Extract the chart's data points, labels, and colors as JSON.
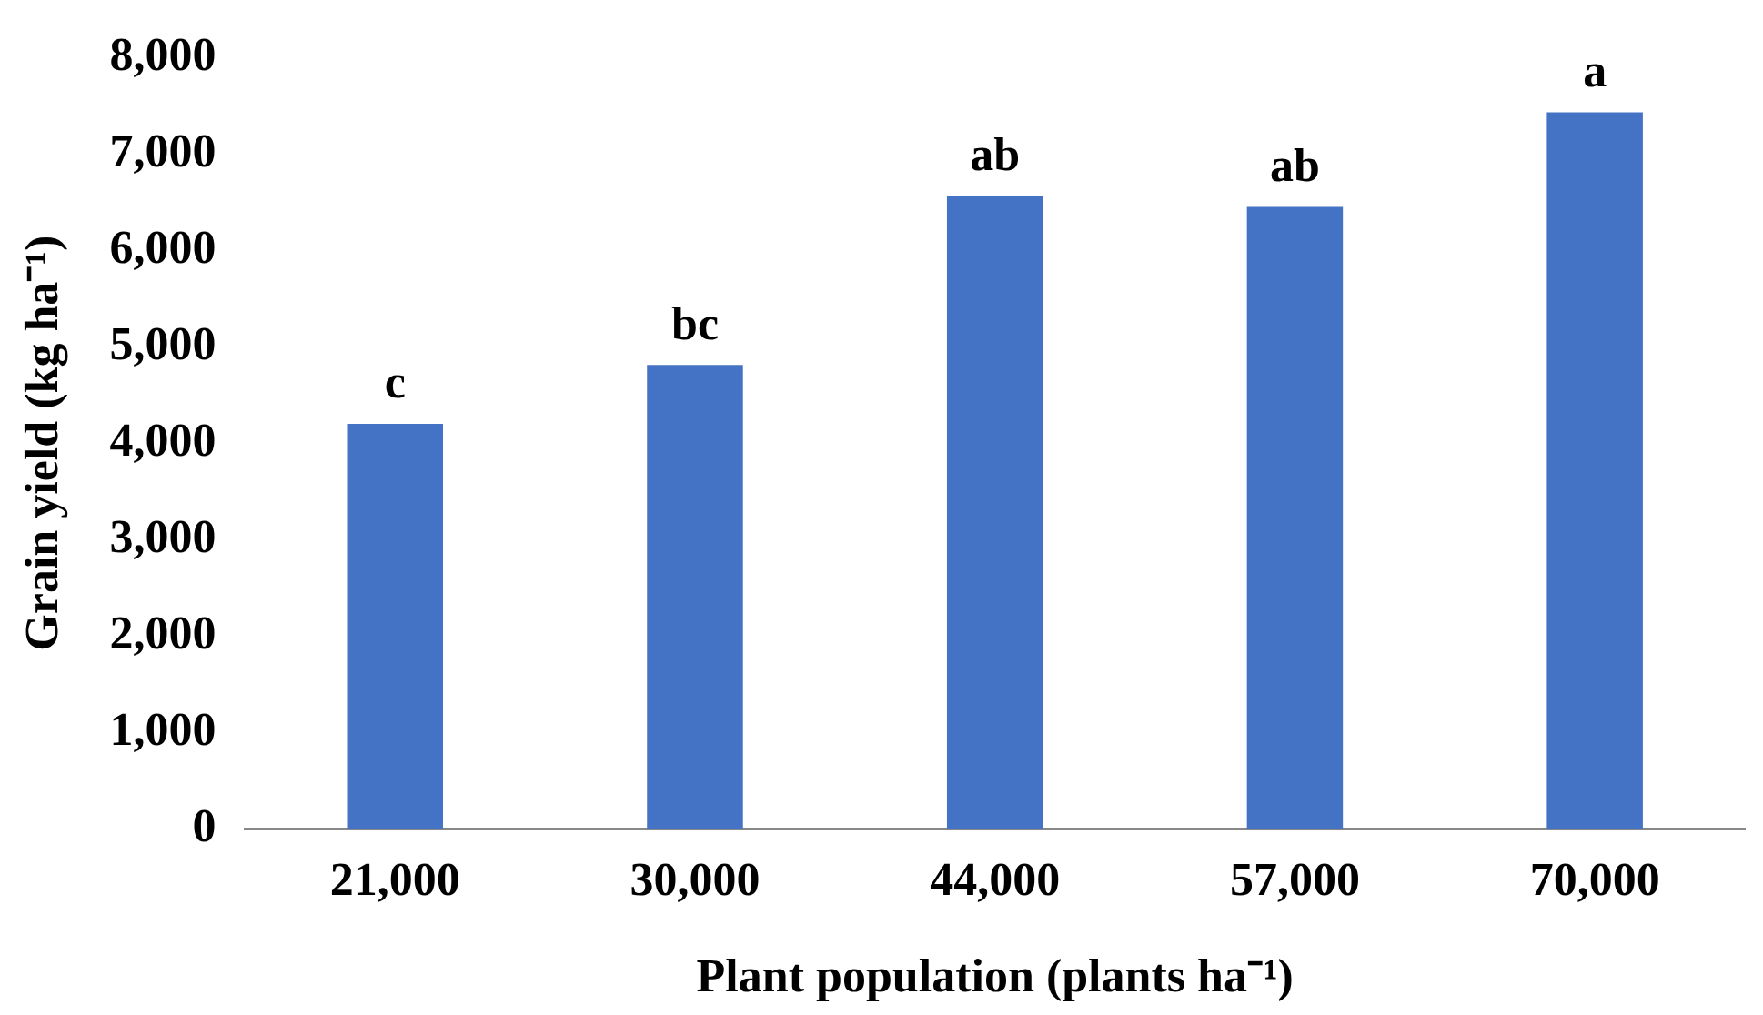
{
  "chart_data": {
    "type": "bar",
    "xlabel": "Plant population (plants ha⁻¹)",
    "ylabel": "Grain yield (kg ha⁻¹)",
    "categories": [
      "21,000",
      "30,000",
      "44,000",
      "57,000",
      "70,000"
    ],
    "values": [
      4200,
      4810,
      6560,
      6450,
      7430
    ],
    "color": "#4472c4",
    "ylim": [
      0,
      8000
    ],
    "yticks": [
      {
        "value": 0,
        "label": "0"
      },
      {
        "value": 1000,
        "label": "1,000"
      },
      {
        "value": 2000,
        "label": "2,000"
      },
      {
        "value": 3000,
        "label": "3,000"
      },
      {
        "value": 4000,
        "label": "4,000"
      },
      {
        "value": 5000,
        "label": "5,000"
      },
      {
        "value": 6000,
        "label": "6,000"
      },
      {
        "value": 7000,
        "label": "7,000"
      },
      {
        "value": 8000,
        "label": "8,000"
      }
    ],
    "grid": false,
    "legend": false,
    "annotations": [
      {
        "text": "c",
        "x": "21,000",
        "y": 4200
      },
      {
        "text": "bc",
        "x": "30,000",
        "y": 4810
      },
      {
        "text": "ab",
        "x": "44,000",
        "y": 6560
      },
      {
        "text": "ab",
        "x": "57,000",
        "y": 6450
      },
      {
        "text": "a",
        "x": "70,000",
        "y": 7430
      }
    ]
  }
}
